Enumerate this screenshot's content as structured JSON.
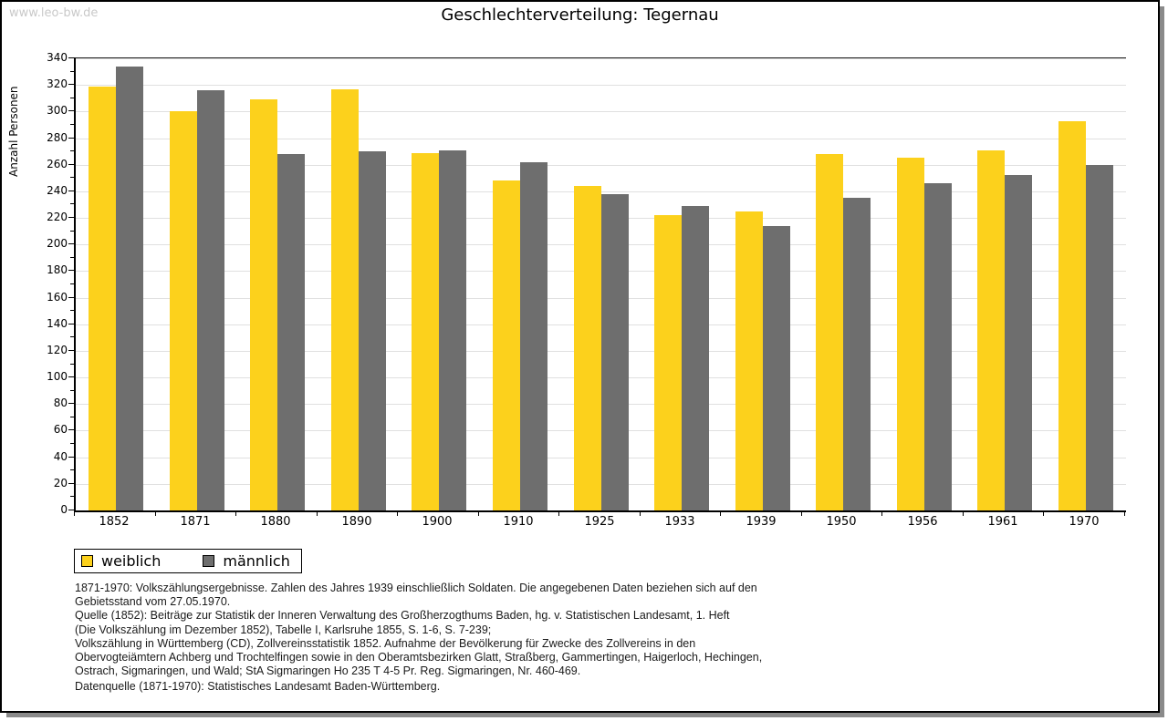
{
  "watermark": "www.leo-bw.de",
  "title": "Geschlechterverteilung: Tegernau",
  "chart_data": {
    "type": "bar",
    "title": "Geschlechterverteilung: Tegernau",
    "xlabel": "",
    "ylabel": "Anzahl Personen",
    "categories": [
      "1852",
      "1871",
      "1880",
      "1890",
      "1900",
      "1910",
      "1925",
      "1933",
      "1939",
      "1950",
      "1956",
      "1961",
      "1970"
    ],
    "series": [
      {
        "name": "weiblich",
        "color": "#fcd11c",
        "values": [
          319,
          300,
          309,
          317,
          269,
          248,
          244,
          222,
          225,
          268,
          265,
          271,
          293
        ]
      },
      {
        "name": "männlich",
        "color": "#6e6e6e",
        "values": [
          334,
          316,
          268,
          270,
          271,
          262,
          238,
          229,
          214,
          235,
          246,
          252,
          260
        ]
      }
    ],
    "ylim": [
      0,
      340
    ],
    "ytick_step": 20,
    "ytick_minor_step": 10,
    "grid": "horizontal-major",
    "gridline_color": "#e0e0e0",
    "legend_position": "bottom-left"
  },
  "legend": {
    "items": [
      {
        "label": "weiblich",
        "color": "#fcd11c"
      },
      {
        "label": "männlich",
        "color": "#6e6e6e"
      }
    ]
  },
  "footnotes": {
    "lines": [
      "1871-1970: Volkszählungsergebnisse. Zahlen des Jahres 1939 einschließlich Soldaten. Die angegebenen Daten beziehen sich auf den",
      "Gebietsstand vom 27.05.1970.",
      "Quelle (1852): Beiträge zur Statistik der Inneren Verwaltung des Großherzogthums Baden, hg. v. Statistischen Landesamt, 1. Heft",
      "(Die Volkszählung im Dezember 1852), Tabelle I, Karlsruhe 1855, S. 1-6, S. 7-239;",
      "Volkszählung in Württemberg (CD), Zollvereinsstatistik 1852. Aufnahme der Bevölkerung für Zwecke des Zollvereins in den",
      "Obervogteiämtern Achberg und Trochtelfingen sowie in den Oberamtsbezirken Glatt, Straßberg, Gammertingen, Haigerloch, Hechingen,",
      "Ostrach, Sigmaringen, und Wald; StA Sigmaringen Ho 235 T 4-5 Pr. Reg. Sigmaringen, Nr. 460-469."
    ],
    "datasource": "Datenquelle (1871-1970): Statistisches Landesamt Baden-Württemberg."
  },
  "colors": {
    "female_bar": "#fcd11c",
    "male_bar": "#6e6e6e",
    "gridline": "#e0e0e0",
    "watermark": "#c9c9c9",
    "frame_border": "#000000",
    "frame_shadow": "#8a8a8a"
  }
}
